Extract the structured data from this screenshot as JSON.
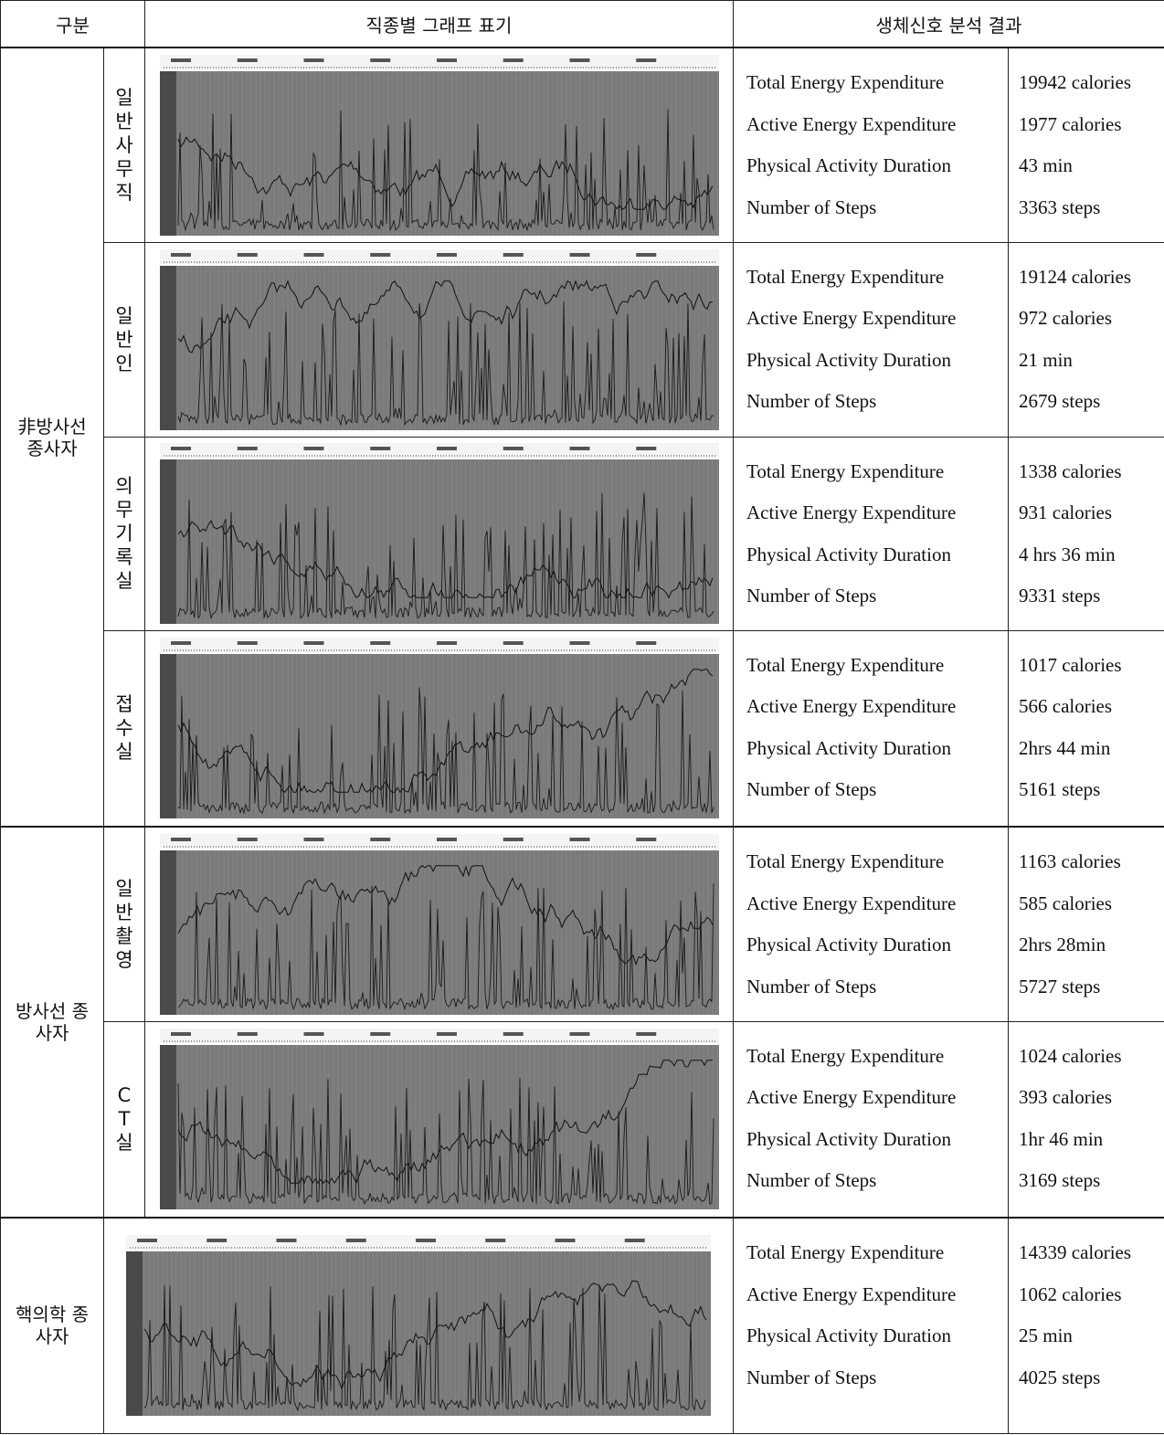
{
  "header": {
    "category": "구분",
    "graph": "직종별 그래프 표기",
    "result": "생체신호 분석 결과"
  },
  "groups": [
    {
      "label": "非방사선 종사자",
      "rows": [
        {
          "sub": "일반사무직",
          "metrics": [
            {
              "label": "Total Energy Expenditure",
              "value": "19942 calories"
            },
            {
              "label": "Active Energy Expenditure",
              "value": "1977 calories"
            },
            {
              "label": "Physical Activity Duration",
              "value": "43 min"
            },
            {
              "label": "Number of Steps",
              "value": "3363 steps"
            }
          ]
        },
        {
          "sub": "일반인",
          "metrics": [
            {
              "label": "Total Energy Expenditure",
              "value": "19124 calories"
            },
            {
              "label": "Active Energy Expenditure",
              "value": "972 calories"
            },
            {
              "label": "Physical Activity Duration",
              "value": "21 min"
            },
            {
              "label": "Number of Steps",
              "value": "2679 steps"
            }
          ]
        },
        {
          "sub": "의무기록실",
          "metrics": [
            {
              "label": "Total Energy Expenditure",
              "value": "1338 calories"
            },
            {
              "label": "Active Energy Expenditure",
              "value": "931 calories"
            },
            {
              "label": "Physical Activity Duration",
              "value": "4 hrs 36 min"
            },
            {
              "label": "Number of Steps",
              "value": "9331 steps"
            }
          ]
        },
        {
          "sub": "접수실",
          "metrics": [
            {
              "label": "Total Energy Expenditure",
              "value": "1017 calories"
            },
            {
              "label": "Active Energy Expenditure",
              "value": "566 calories"
            },
            {
              "label": "Physical Activity Duration",
              "value": "2hrs 44 min"
            },
            {
              "label": "Number of Steps",
              "value": "5161 steps"
            }
          ]
        }
      ]
    },
    {
      "label": "방사선 종사자",
      "rows": [
        {
          "sub": "일반촬영",
          "metrics": [
            {
              "label": "Total Energy Expenditure",
              "value": "1163 calories"
            },
            {
              "label": "Active Energy Expenditure",
              "value": "585 calories"
            },
            {
              "label": "Physical Activity Duration",
              "value": "2hrs 28min"
            },
            {
              "label": "Number of Steps",
              "value": "5727 steps"
            }
          ]
        },
        {
          "sub": "CT실",
          "metrics": [
            {
              "label": "Total Energy Expenditure",
              "value": "1024 calories"
            },
            {
              "label": "Active Energy Expenditure",
              "value": "393 calories"
            },
            {
              "label": "Physical Activity Duration",
              "value": "1hr 46 min"
            },
            {
              "label": "Number of Steps",
              "value": "3169 steps"
            }
          ]
        }
      ]
    },
    {
      "label": "핵의학 종사자",
      "rows": [
        {
          "metrics": [
            {
              "label": "Total Energy Expenditure",
              "value": "14339 calories"
            },
            {
              "label": "Active Energy Expenditure",
              "value": "1062 calories"
            },
            {
              "label": "Physical Activity Duration",
              "value": "25 min"
            },
            {
              "label": "Number of Steps",
              "value": "4025 steps"
            }
          ]
        }
      ]
    }
  ]
}
